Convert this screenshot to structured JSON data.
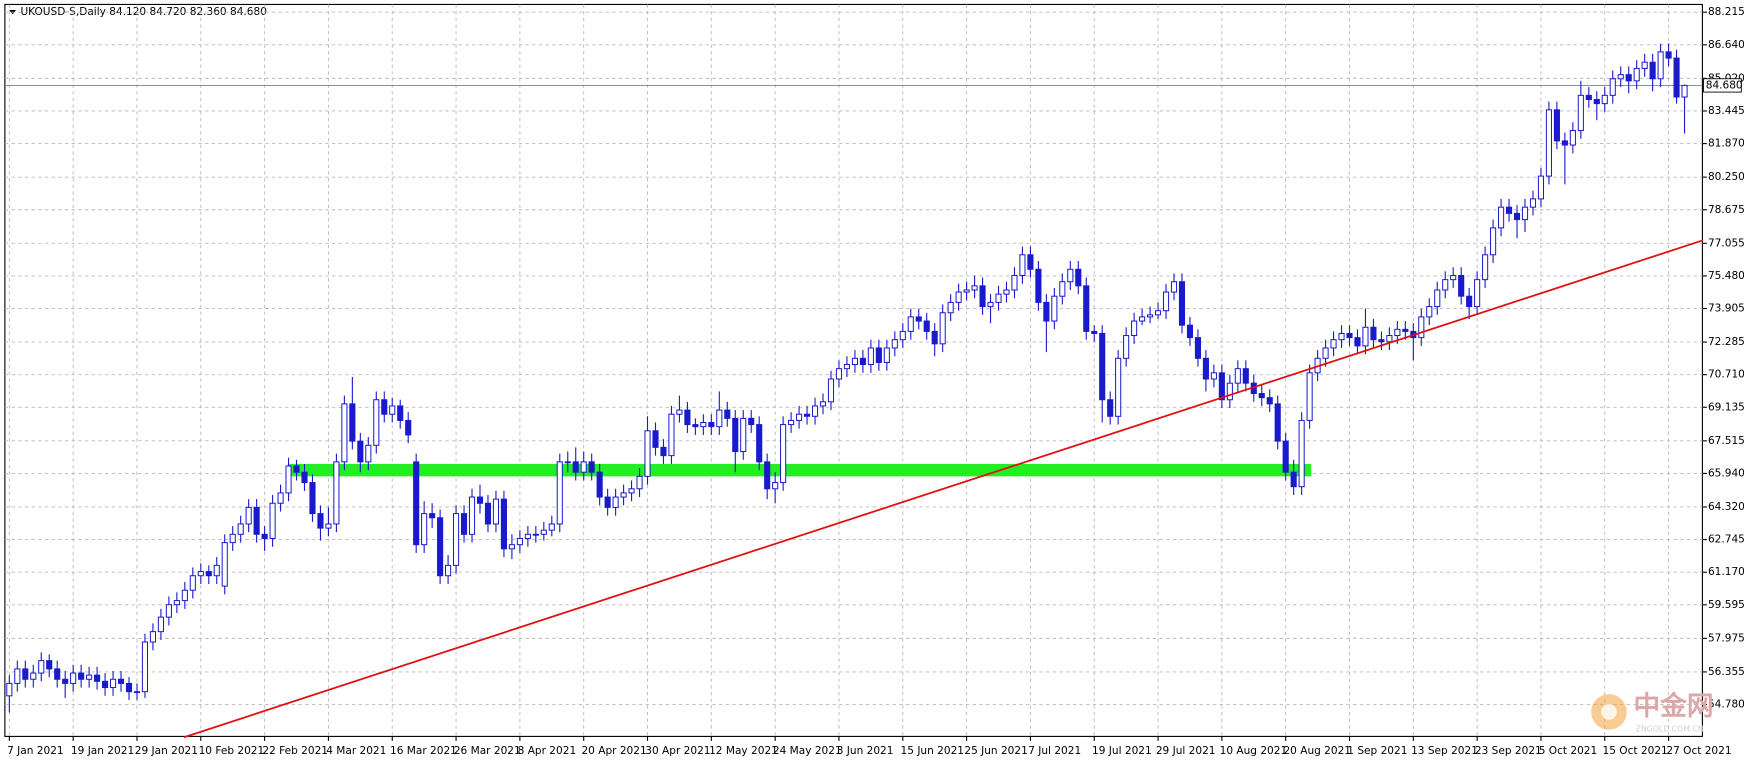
{
  "chart_data": {
    "type": "candlestick",
    "title": "UKOUSD-S,Daily  84.120 84.720 82.360 84.680",
    "up_color": "#ffffff",
    "down_color": "#1a1acd",
    "wick_color": "#1a1acd",
    "grid": true,
    "xlim": [
      -0.56,
      212.24
    ],
    "ylim": [
      53.24,
      88.59
    ],
    "xticks": [
      {
        "value": 0,
        "label": "7 Jan 2021"
      },
      {
        "value": 8,
        "label": "19 Jan 2021"
      },
      {
        "value": 16,
        "label": "29 Jan 2021"
      },
      {
        "value": 24,
        "label": "10 Feb 2021"
      },
      {
        "value": 32,
        "label": "22 Feb 2021"
      },
      {
        "value": 40,
        "label": "4 Mar 2021"
      },
      {
        "value": 48,
        "label": "16 Mar 2021"
      },
      {
        "value": 56,
        "label": "26 Mar 2021"
      },
      {
        "value": 64,
        "label": "8 Apr 2021"
      },
      {
        "value": 72,
        "label": "20 Apr 2021"
      },
      {
        "value": 80,
        "label": "30 Apr 2021"
      },
      {
        "value": 88,
        "label": "12 May 2021"
      },
      {
        "value": 96,
        "label": "24 May 2021"
      },
      {
        "value": 104,
        "label": "3 Jun 2021"
      },
      {
        "value": 112,
        "label": "15 Jun 2021"
      },
      {
        "value": 120,
        "label": "25 Jun 2021"
      },
      {
        "value": 128,
        "label": "7 Jul 2021"
      },
      {
        "value": 136,
        "label": "19 Jul 2021"
      },
      {
        "value": 144,
        "label": "29 Jul 2021"
      },
      {
        "value": 152,
        "label": "10 Aug 2021"
      },
      {
        "value": 160,
        "label": "20 Aug 2021"
      },
      {
        "value": 168,
        "label": "1 Sep 2021"
      },
      {
        "value": 176,
        "label": "13 Sep 2021"
      },
      {
        "value": 184,
        "label": "23 Sep 2021"
      },
      {
        "value": 192,
        "label": "5 Oct 2021"
      },
      {
        "value": 200,
        "label": "15 Oct 2021"
      },
      {
        "value": 208,
        "label": "27 Oct 2021"
      }
    ],
    "yticks": [
      88.215,
      {
        "value": 86.64,
        "label": "86.640"
      },
      {
        "value": 85.02,
        "label": "85.020"
      },
      83.445,
      {
        "value": 81.87,
        "label": "81.870"
      },
      {
        "value": 80.25,
        "label": "80.250"
      },
      78.675,
      77.055,
      {
        "value": 75.48,
        "label": "75.480"
      },
      73.905,
      72.285,
      {
        "value": 70.71,
        "label": "70.710"
      },
      69.135,
      67.515,
      {
        "value": 65.94,
        "label": "65.940"
      },
      {
        "value": 64.32,
        "label": "64.320"
      },
      62.745,
      {
        "value": 61.17,
        "label": "61.170"
      },
      59.595,
      57.975,
      56.355,
      {
        "value": 54.78,
        "label": "54.780"
      }
    ],
    "last_price": {
      "value": 84.68,
      "label": "84.680",
      "color": "#7080a0"
    },
    "trendline": {
      "x": [
        21.9,
        212.3
      ],
      "y": [
        53.2,
        77.2
      ],
      "color": "#e01010"
    },
    "zone": {
      "x": [
        34.9,
        163.2
      ],
      "y": [
        65.8,
        66.4
      ],
      "color": "#22ee22"
    },
    "watermark": {
      "text": "中金网",
      "sub": "ZNGOLD.COM.CN"
    },
    "ohlc": [
      [
        55.2,
        56.2,
        54.4,
        55.8
      ],
      [
        55.8,
        56.9,
        55.4,
        56.5
      ],
      [
        56.5,
        56.9,
        55.6,
        56.0
      ],
      [
        56.0,
        56.7,
        55.6,
        56.3
      ],
      [
        56.3,
        57.3,
        55.9,
        56.9
      ],
      [
        56.9,
        57.2,
        56.1,
        56.5
      ],
      [
        56.5,
        56.9,
        55.6,
        56.0
      ],
      [
        56.0,
        56.4,
        55.1,
        55.8
      ],
      [
        55.8,
        56.7,
        55.4,
        56.3
      ],
      [
        56.3,
        56.7,
        55.6,
        56.0
      ],
      [
        56.0,
        56.6,
        55.6,
        56.2
      ],
      [
        56.2,
        56.6,
        55.5,
        55.9
      ],
      [
        55.9,
        56.3,
        55.2,
        55.6
      ],
      [
        55.6,
        56.4,
        55.2,
        56.0
      ],
      [
        56.0,
        56.4,
        55.4,
        55.8
      ],
      [
        55.8,
        56.1,
        55.0,
        55.4
      ],
      [
        55.4,
        55.8,
        55.0,
        55.4
      ],
      [
        55.4,
        58.2,
        55.1,
        57.8
      ],
      [
        57.8,
        58.7,
        57.4,
        58.3
      ],
      [
        58.3,
        59.4,
        57.9,
        59.0
      ],
      [
        59.0,
        60.0,
        58.6,
        59.6
      ],
      [
        59.6,
        60.2,
        59.2,
        59.8
      ],
      [
        59.8,
        60.7,
        59.4,
        60.3
      ],
      [
        60.3,
        61.4,
        59.9,
        61.0
      ],
      [
        61.0,
        61.6,
        60.6,
        61.2
      ],
      [
        61.2,
        61.5,
        60.6,
        61.0
      ],
      [
        61.0,
        61.9,
        60.6,
        61.5
      ],
      [
        60.5,
        63.0,
        60.1,
        62.6
      ],
      [
        62.6,
        63.4,
        62.2,
        63.0
      ],
      [
        63.0,
        63.9,
        62.6,
        63.5
      ],
      [
        63.5,
        64.7,
        63.1,
        64.3
      ],
      [
        64.3,
        64.7,
        62.6,
        63.0
      ],
      [
        63.0,
        63.4,
        62.2,
        62.8
      ],
      [
        62.8,
        64.9,
        62.4,
        64.5
      ],
      [
        64.5,
        65.4,
        64.1,
        65.0
      ],
      [
        65.0,
        66.7,
        64.6,
        66.3
      ],
      [
        66.3,
        66.6,
        65.6,
        66.0
      ],
      [
        66.0,
        66.4,
        65.1,
        65.5
      ],
      [
        65.5,
        65.9,
        63.6,
        64.0
      ],
      [
        64.0,
        64.4,
        62.7,
        63.3
      ],
      [
        63.3,
        64.3,
        62.9,
        63.5
      ],
      [
        63.5,
        66.9,
        63.1,
        66.5
      ],
      [
        66.5,
        69.7,
        66.1,
        69.3
      ],
      [
        69.3,
        70.6,
        67.1,
        67.5
      ],
      [
        67.5,
        67.9,
        66.0,
        66.5
      ],
      [
        66.5,
        67.7,
        66.1,
        67.3
      ],
      [
        67.3,
        69.9,
        66.9,
        69.5
      ],
      [
        69.5,
        69.9,
        68.4,
        68.8
      ],
      [
        68.8,
        69.6,
        68.4,
        69.2
      ],
      [
        69.2,
        69.5,
        68.1,
        68.5
      ],
      [
        68.5,
        68.9,
        67.4,
        67.8
      ],
      [
        66.5,
        66.9,
        62.1,
        62.5
      ],
      [
        62.5,
        64.6,
        62.1,
        64.0
      ],
      [
        64.0,
        64.5,
        63.3,
        63.8
      ],
      [
        63.8,
        64.2,
        60.6,
        61.0
      ],
      [
        61.0,
        62.0,
        60.6,
        61.5
      ],
      [
        61.5,
        64.4,
        61.1,
        64.0
      ],
      [
        64.0,
        64.4,
        62.6,
        63.0
      ],
      [
        63.0,
        65.2,
        62.6,
        64.8
      ],
      [
        64.8,
        65.4,
        64.0,
        64.5
      ],
      [
        64.5,
        64.9,
        63.1,
        63.5
      ],
      [
        63.5,
        65.1,
        63.1,
        64.7
      ],
      [
        64.7,
        65.1,
        61.9,
        62.3
      ],
      [
        62.3,
        63.0,
        61.8,
        62.5
      ],
      [
        62.5,
        63.2,
        62.1,
        62.8
      ],
      [
        62.8,
        63.4,
        62.4,
        63.0
      ],
      [
        63.0,
        63.4,
        62.6,
        63.0
      ],
      [
        63.0,
        63.6,
        62.7,
        63.2
      ],
      [
        63.2,
        63.9,
        62.9,
        63.5
      ],
      [
        63.5,
        66.9,
        63.1,
        66.5
      ],
      [
        66.5,
        67.0,
        66.0,
        66.5
      ],
      [
        66.5,
        67.2,
        65.6,
        66.0
      ],
      [
        66.0,
        67.0,
        65.6,
        66.5
      ],
      [
        66.5,
        66.9,
        65.6,
        66.0
      ],
      [
        66.0,
        66.4,
        64.4,
        64.8
      ],
      [
        64.8,
        65.2,
        63.9,
        64.3
      ],
      [
        64.3,
        65.2,
        63.9,
        64.8
      ],
      [
        64.8,
        65.4,
        64.4,
        65.0
      ],
      [
        65.0,
        65.6,
        64.6,
        65.2
      ],
      [
        65.2,
        66.2,
        64.8,
        65.8
      ],
      [
        65.8,
        68.7,
        65.4,
        68.0
      ],
      [
        68.0,
        68.4,
        66.8,
        67.2
      ],
      [
        67.2,
        67.6,
        66.4,
        66.8
      ],
      [
        66.8,
        69.2,
        66.4,
        68.8
      ],
      [
        68.8,
        69.7,
        68.4,
        69.0
      ],
      [
        69.0,
        69.4,
        67.9,
        68.3
      ],
      [
        68.3,
        68.6,
        67.8,
        68.2
      ],
      [
        68.2,
        68.8,
        67.8,
        68.4
      ],
      [
        68.4,
        68.8,
        67.8,
        68.2
      ],
      [
        68.2,
        69.9,
        67.8,
        69.0
      ],
      [
        69.0,
        69.4,
        68.2,
        68.6
      ],
      [
        68.6,
        69.0,
        66.0,
        67.0
      ],
      [
        67.0,
        69.0,
        66.6,
        68.6
      ],
      [
        68.6,
        69.0,
        67.9,
        68.3
      ],
      [
        68.3,
        68.7,
        66.1,
        66.5
      ],
      [
        66.5,
        66.9,
        64.7,
        65.2
      ],
      [
        65.2,
        66.0,
        64.5,
        65.5
      ],
      [
        65.5,
        68.7,
        65.1,
        68.3
      ],
      [
        68.3,
        68.9,
        67.9,
        68.5
      ],
      [
        68.5,
        69.2,
        68.1,
        68.8
      ],
      [
        68.8,
        69.2,
        68.3,
        68.7
      ],
      [
        68.7,
        69.6,
        68.3,
        69.2
      ],
      [
        69.2,
        69.8,
        68.8,
        69.4
      ],
      [
        69.4,
        70.9,
        69.0,
        70.5
      ],
      [
        70.5,
        71.4,
        70.1,
        71.0
      ],
      [
        71.0,
        71.6,
        70.6,
        71.2
      ],
      [
        71.2,
        71.9,
        70.8,
        71.5
      ],
      [
        71.5,
        71.9,
        70.8,
        71.2
      ],
      [
        71.2,
        72.4,
        70.8,
        72.0
      ],
      [
        72.0,
        72.4,
        70.9,
        71.3
      ],
      [
        71.3,
        72.4,
        70.9,
        72.0
      ],
      [
        72.0,
        72.8,
        71.6,
        72.4
      ],
      [
        72.4,
        73.2,
        72.0,
        72.8
      ],
      [
        72.8,
        73.9,
        72.4,
        73.5
      ],
      [
        73.5,
        73.9,
        72.9,
        73.3
      ],
      [
        73.3,
        73.7,
        72.4,
        72.8
      ],
      [
        72.8,
        73.2,
        71.6,
        72.2
      ],
      [
        72.2,
        74.1,
        71.8,
        73.7
      ],
      [
        73.7,
        74.6,
        73.3,
        74.2
      ],
      [
        74.2,
        75.1,
        73.8,
        74.7
      ],
      [
        74.7,
        75.2,
        74.3,
        74.8
      ],
      [
        74.8,
        75.5,
        74.4,
        75.0
      ],
      [
        75.0,
        75.4,
        73.6,
        74.0
      ],
      [
        74.0,
        74.6,
        73.2,
        74.2
      ],
      [
        74.2,
        75.0,
        73.8,
        74.6
      ],
      [
        74.6,
        75.2,
        74.2,
        74.8
      ],
      [
        74.8,
        75.9,
        74.4,
        75.5
      ],
      [
        75.5,
        76.9,
        75.1,
        76.5
      ],
      [
        76.5,
        76.9,
        75.4,
        75.8
      ],
      [
        75.8,
        76.2,
        73.8,
        74.2
      ],
      [
        74.2,
        74.6,
        71.8,
        73.3
      ],
      [
        73.3,
        74.9,
        72.9,
        74.5
      ],
      [
        74.5,
        75.6,
        74.1,
        75.2
      ],
      [
        75.2,
        76.2,
        74.8,
        75.8
      ],
      [
        75.8,
        76.2,
        74.6,
        75.0
      ],
      [
        75.0,
        75.4,
        72.4,
        72.8
      ],
      [
        72.8,
        73.1,
        72.3,
        72.7
      ],
      [
        72.7,
        73.1,
        68.4,
        69.5
      ],
      [
        69.5,
        69.9,
        68.3,
        68.7
      ],
      [
        68.7,
        71.9,
        68.3,
        71.5
      ],
      [
        71.5,
        73.0,
        71.1,
        72.6
      ],
      [
        72.6,
        73.7,
        72.2,
        73.3
      ],
      [
        73.3,
        73.9,
        73.1,
        73.5
      ],
      [
        73.5,
        74.0,
        73.2,
        73.6
      ],
      [
        73.6,
        74.2,
        73.4,
        73.8
      ],
      [
        73.8,
        75.1,
        73.4,
        74.7
      ],
      [
        74.7,
        75.6,
        74.3,
        75.2
      ],
      [
        75.2,
        75.6,
        72.7,
        73.1
      ],
      [
        73.1,
        73.5,
        72.1,
        72.5
      ],
      [
        72.5,
        72.9,
        71.1,
        71.5
      ],
      [
        71.5,
        71.9,
        69.9,
        70.5
      ],
      [
        70.5,
        71.2,
        70.1,
        70.8
      ],
      [
        70.8,
        71.2,
        69.1,
        69.5
      ],
      [
        69.5,
        70.7,
        69.1,
        70.3
      ],
      [
        70.3,
        71.4,
        69.9,
        71.0
      ],
      [
        71.0,
        71.4,
        69.9,
        70.3
      ],
      [
        70.3,
        70.7,
        69.4,
        69.8
      ],
      [
        69.8,
        70.2,
        69.2,
        69.6
      ],
      [
        69.6,
        70.0,
        68.9,
        69.3
      ],
      [
        69.3,
        69.7,
        67.1,
        67.5
      ],
      [
        67.5,
        67.9,
        65.6,
        66.0
      ],
      [
        66.0,
        66.6,
        64.9,
        65.3
      ],
      [
        65.3,
        68.9,
        64.9,
        68.5
      ],
      [
        68.5,
        71.2,
        68.1,
        70.8
      ],
      [
        70.8,
        71.9,
        70.4,
        71.5
      ],
      [
        71.5,
        72.4,
        71.1,
        72.0
      ],
      [
        72.0,
        72.8,
        71.6,
        72.4
      ],
      [
        72.4,
        73.1,
        72.0,
        72.7
      ],
      [
        72.7,
        73.1,
        72.1,
        72.5
      ],
      [
        72.5,
        72.9,
        71.7,
        72.1
      ],
      [
        72.1,
        73.9,
        71.7,
        73.0
      ],
      [
        73.0,
        73.4,
        72.0,
        72.4
      ],
      [
        72.4,
        72.8,
        71.9,
        72.3
      ],
      [
        72.3,
        73.0,
        71.9,
        72.6
      ],
      [
        72.6,
        73.3,
        72.2,
        72.9
      ],
      [
        72.9,
        73.3,
        72.4,
        72.8
      ],
      [
        72.8,
        73.2,
        71.4,
        72.5
      ],
      [
        72.5,
        73.9,
        72.1,
        73.5
      ],
      [
        73.5,
        74.4,
        73.1,
        74.0
      ],
      [
        74.0,
        75.2,
        73.6,
        74.8
      ],
      [
        74.8,
        75.7,
        74.4,
        75.3
      ],
      [
        75.3,
        75.9,
        74.9,
        75.5
      ],
      [
        75.5,
        75.9,
        74.1,
        74.5
      ],
      [
        74.5,
        74.9,
        73.4,
        74.0
      ],
      [
        74.0,
        75.7,
        73.6,
        75.3
      ],
      [
        75.3,
        76.9,
        74.9,
        76.5
      ],
      [
        76.5,
        78.2,
        76.1,
        77.8
      ],
      [
        77.8,
        79.2,
        77.4,
        78.8
      ],
      [
        78.8,
        79.2,
        78.1,
        78.5
      ],
      [
        78.5,
        78.9,
        77.3,
        78.2
      ],
      [
        78.2,
        79.2,
        77.6,
        78.8
      ],
      [
        78.8,
        79.6,
        78.4,
        79.2
      ],
      [
        79.2,
        80.7,
        78.8,
        80.3
      ],
      [
        80.3,
        83.9,
        79.9,
        83.5
      ],
      [
        83.5,
        83.9,
        81.6,
        82.0
      ],
      [
        82.0,
        82.4,
        79.9,
        81.8
      ],
      [
        81.8,
        82.9,
        81.4,
        82.5
      ],
      [
        82.5,
        84.9,
        82.1,
        84.2
      ],
      [
        84.2,
        84.6,
        83.6,
        84.0
      ],
      [
        84.0,
        84.4,
        83.0,
        83.8
      ],
      [
        83.8,
        84.6,
        83.4,
        84.2
      ],
      [
        84.2,
        85.4,
        83.8,
        85.0
      ],
      [
        85.0,
        85.6,
        84.6,
        85.2
      ],
      [
        85.2,
        85.6,
        84.3,
        84.9
      ],
      [
        84.9,
        85.9,
        84.5,
        85.5
      ],
      [
        85.5,
        86.2,
        85.1,
        85.8
      ],
      [
        85.8,
        86.2,
        84.4,
        85.0
      ],
      [
        85.0,
        86.7,
        84.6,
        86.3
      ],
      [
        86.3,
        86.7,
        85.6,
        86.0
      ],
      [
        86.0,
        86.4,
        83.8,
        84.12
      ],
      [
        84.12,
        84.72,
        82.36,
        84.68
      ]
    ]
  }
}
